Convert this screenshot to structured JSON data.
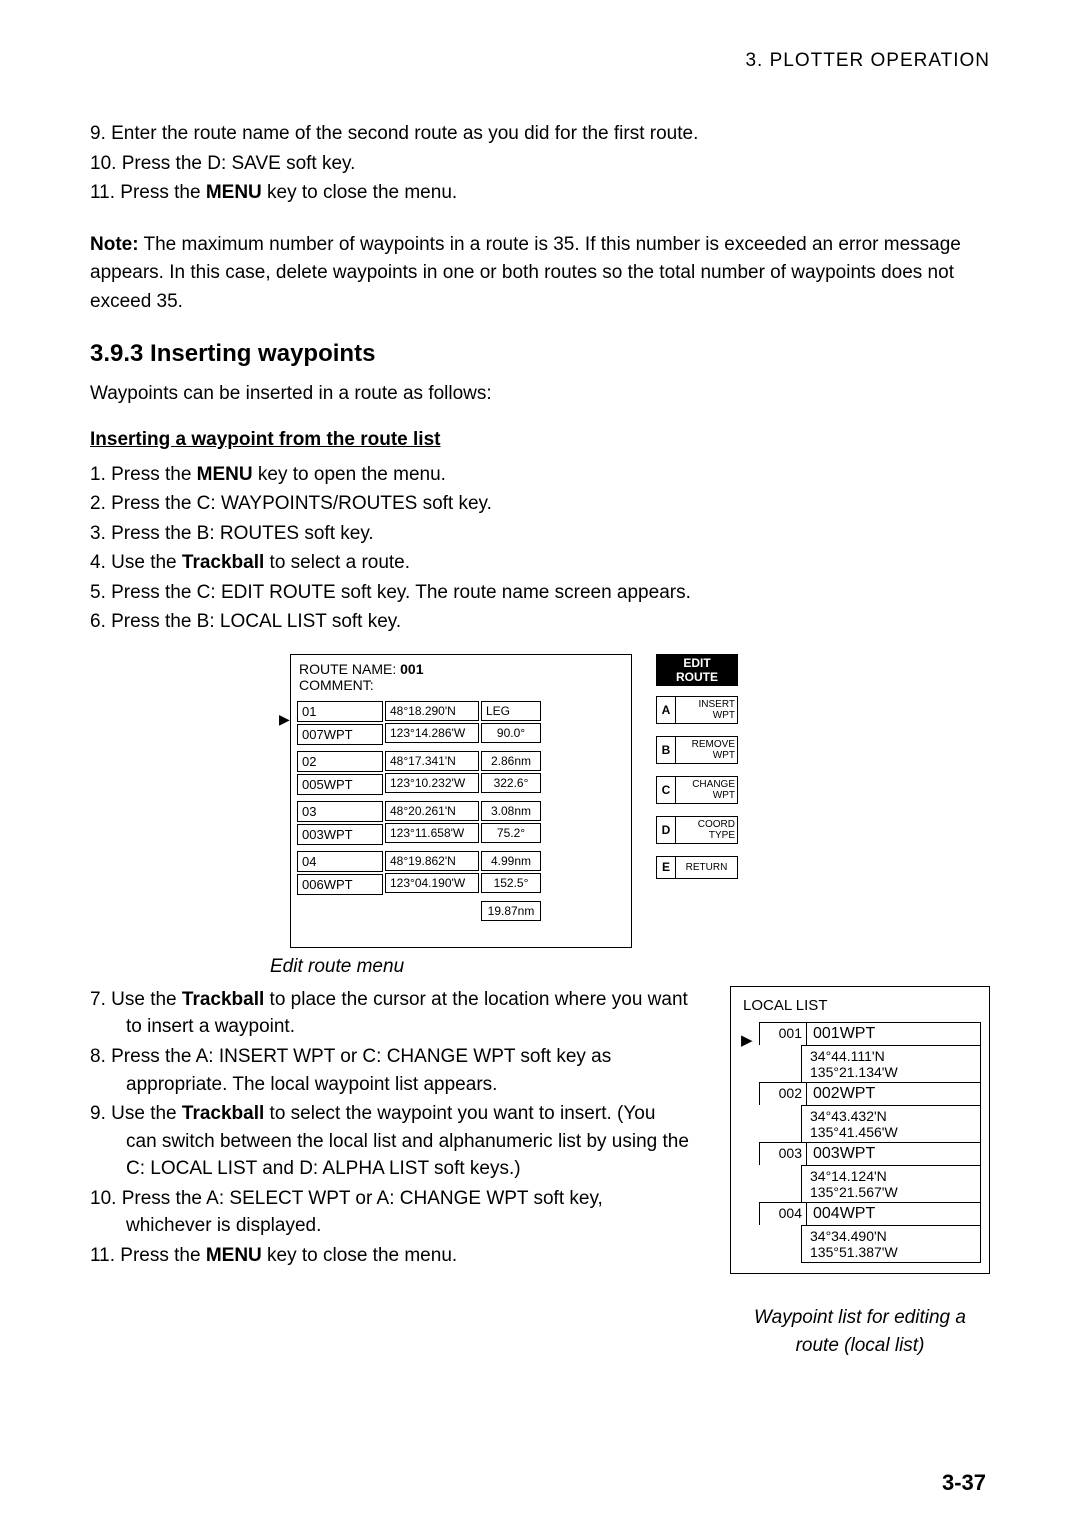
{
  "header": "3.  PLOTTER  OPERATION",
  "steps_top": [
    "9.   Enter the route name of the second route as you did for the first route.",
    "10. Press the D: SAVE soft key."
  ],
  "step_top_11_a": "11. Press the ",
  "step_top_11_b": "MENU",
  "step_top_11_c": " key to close the menu.",
  "note_a": "Note:",
  "note_b": " The maximum number of waypoints in a route is 35. If this number is exceeded an error message appears. In this case, delete waypoints in one or both routes so the total number of waypoints does not exceed 35.",
  "h3": "3.9.3    Inserting waypoints",
  "intro": "Waypoints can be inserted in a route as follows:",
  "subh": "Inserting a waypoint from the route list",
  "s1a": "1.   Press the ",
  "s1b": "MENU",
  "s1c": " key to open the menu.",
  "s2": "2.   Press the C: WAYPOINTS/ROUTES soft key.",
  "s3": "3.   Press the B: ROUTES soft key.",
  "s4a": "4.   Use the ",
  "s4b": "Trackball",
  "s4c": " to select a route.",
  "s5": "5.   Press the C: EDIT ROUTE soft key. The route name screen appears.",
  "s6": "6.   Press the B: LOCAL LIST soft key.",
  "route": {
    "title_a": "ROUTE NAME: ",
    "title_b": "001",
    "comment": "COMMENT:",
    "leg_label": "LEG",
    "rows": [
      {
        "idx": "01",
        "name": "007WPT",
        "lat": "48°18.290'N",
        "lon": "123°14.286'W",
        "brg": "90.0°",
        "dist_prev": ""
      },
      {
        "idx": "02",
        "name": "005WPT",
        "lat": "48°17.341'N",
        "lon": "123°10.232'W",
        "brg": "322.6°",
        "dist_prev": "2.86nm"
      },
      {
        "idx": "03",
        "name": "003WPT",
        "lat": "48°20.261'N",
        "lon": "123°11.658'W",
        "brg": "75.2°",
        "dist_prev": "3.08nm"
      },
      {
        "idx": "04",
        "name": "006WPT",
        "lat": "48°19.862'N",
        "lon": "123°04.190'W",
        "brg": "152.5°",
        "dist_prev": "4.99nm"
      }
    ],
    "tail_dist": "19.87nm"
  },
  "sk_head": "EDIT\nROUTE",
  "softkeys": [
    {
      "l": "A",
      "r": "INSERT\nWPT"
    },
    {
      "l": "B",
      "r": "REMOVE\nWPT"
    },
    {
      "l": "C",
      "r": "CHANGE\nWPT"
    },
    {
      "l": "D",
      "r": "COORD\nTYPE"
    },
    {
      "l": "E",
      "r": "RETURN"
    }
  ],
  "fig1_caption": "Edit route menu",
  "s7a": "7.   Use the ",
  "s7b": "Trackball",
  "s7c": " to place the cursor at the location where you want to insert a waypoint.",
  "s8": "8.   Press the A: INSERT WPT or C: CHANGE WPT soft key as appropriate. The local waypoint list appears.",
  "s9a": "9.   Use the ",
  "s9b": "Trackball",
  "s9c": " to select the waypoint you want to insert. (You can switch between the local list and alphanumeric list by using the C: LOCAL LIST and D: ALPHA LIST soft keys.)",
  "s10": "10. Press the A: SELECT WPT or A: CHANGE WPT soft key, whichever is displayed.",
  "s11a": "11. Press the ",
  "s11b": "MENU",
  "s11c": " key to close the menu.",
  "local": {
    "title": "LOCAL LIST",
    "items": [
      {
        "num": "001",
        "name": "001WPT",
        "lat": "34°44.111'N",
        "lon": "135°21.134'W"
      },
      {
        "num": "002",
        "name": "002WPT",
        "lat": "34°43.432'N",
        "lon": "135°41.456'W"
      },
      {
        "num": "003",
        "name": "003WPT",
        "lat": "34°14.124'N",
        "lon": "135°21.567'W"
      },
      {
        "num": "004",
        "name": "004WPT",
        "lat": "34°34.490'N",
        "lon": "135°51.387'W"
      }
    ]
  },
  "fig2_caption": "Waypoint list for editing a route (local list)",
  "page_num": "3-37"
}
